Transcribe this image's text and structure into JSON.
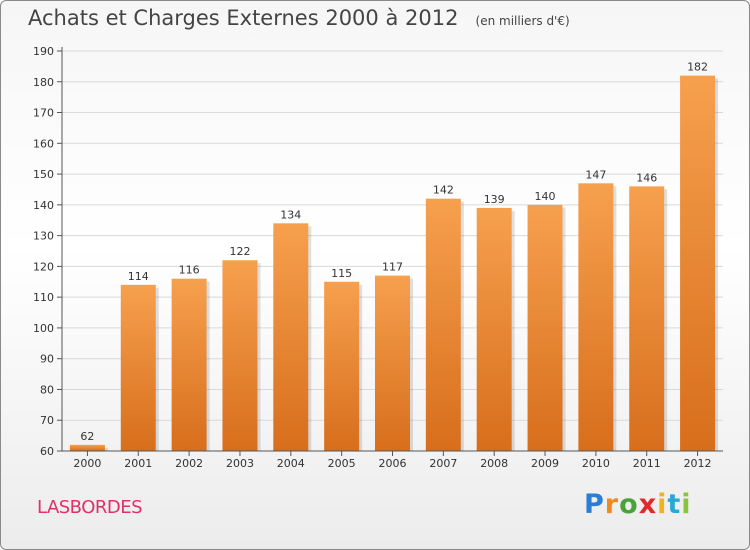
{
  "header": {
    "title": "Achats et Charges Externes 2000 à 2012",
    "unit": "(en milliers d'€)"
  },
  "footer": {
    "place": "LASBORDES"
  },
  "logo": {
    "letters": [
      "P",
      "r",
      "o",
      "x",
      "i",
      "t",
      "i"
    ],
    "colors": [
      "#2a7fd4",
      "#f08a1c",
      "#4aa33a",
      "#e02a2a",
      "#f0b41c",
      "#2aa7d4",
      "#8ac43a"
    ]
  },
  "colors": {
    "bar_top": "#f6a04e",
    "bar_bottom": "#d76e1c",
    "grid": "#d9d9d9",
    "axis": "#555555"
  },
  "chart_data": {
    "type": "bar",
    "title": "Achats et Charges Externes 2000 à 2012",
    "subtitle": "(en milliers d'€)",
    "categories": [
      "2000",
      "2001",
      "2002",
      "2003",
      "2004",
      "2005",
      "2006",
      "2007",
      "2008",
      "2009",
      "2010",
      "2011",
      "2012"
    ],
    "values": [
      62,
      114,
      116,
      122,
      134,
      115,
      117,
      142,
      139,
      140,
      147,
      146,
      182
    ],
    "ylim": [
      60,
      190
    ],
    "yticks": [
      60,
      70,
      80,
      90,
      100,
      110,
      120,
      130,
      140,
      150,
      160,
      170,
      180,
      190
    ],
    "grid": true,
    "xlabel": "",
    "ylabel": ""
  }
}
